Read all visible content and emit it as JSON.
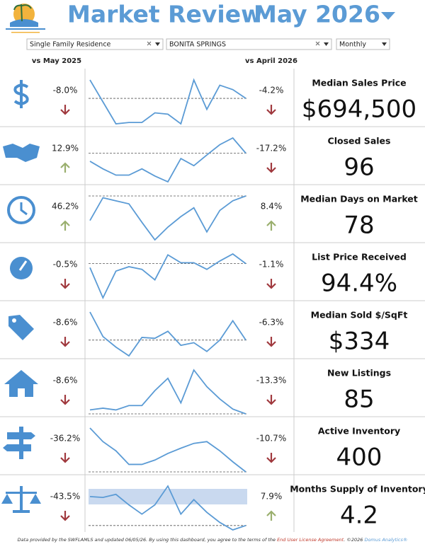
{
  "header": {
    "title": "Market Review",
    "period": "May 2026"
  },
  "filters": [
    "Single Family Residence",
    "BONITA SPRINGS",
    "Monthly"
  ],
  "columns": {
    "yoy": "vs May 2025",
    "mom": "vs April 2026"
  },
  "metrics": [
    {
      "name": "Median Sales Price",
      "value": "$694,500",
      "yoy": "-8.0%",
      "mom": "-4.2%",
      "trend": [
        100,
        50,
        0,
        3,
        3,
        25,
        22,
        0,
        100,
        33,
        88,
        78,
        58
      ]
    },
    {
      "name": "Closed Sales",
      "value": "96",
      "yoy": "12.9%",
      "mom": "-17.2%",
      "trend": [
        48,
        31,
        17,
        17,
        31,
        15,
        2,
        54,
        38,
        62,
        85,
        100,
        66
      ]
    },
    {
      "name": "Median Days on Market",
      "value": "78",
      "yoy": "46.2%",
      "mom": "8.4%",
      "trend": [
        44,
        96,
        89,
        82,
        40,
        0,
        29,
        53,
        73,
        18,
        67,
        89,
        100
      ]
    },
    {
      "name": "List Price Received",
      "value": "94.4%",
      "yoy": "-0.5%",
      "mom": "-1.1%",
      "trend": [
        69,
        0,
        61,
        71,
        65,
        41,
        98,
        80,
        80,
        65,
        84,
        100,
        78
      ]
    },
    {
      "name": "Median Sold $/SqFt",
      "value": "$334",
      "yoy": "-8.6%",
      "mom": "-6.3%",
      "trend": [
        100,
        44,
        20,
        0,
        42,
        40,
        56,
        24,
        30,
        10,
        36,
        80,
        36
      ]
    },
    {
      "name": "New Listings",
      "value": "85",
      "yoy": "-8.6%",
      "mom": "-13.3%",
      "trend": [
        9,
        13,
        9,
        19,
        19,
        53,
        81,
        25,
        100,
        62,
        34,
        11,
        0
      ]
    },
    {
      "name": "Active Inventory",
      "value": "400",
      "yoy": "-36.2%",
      "mom": "-10.7%",
      "trend": [
        100,
        69,
        48,
        17,
        17,
        27,
        42,
        54,
        65,
        69,
        48,
        23,
        0
      ]
    },
    {
      "name": "Months Supply of Inventory",
      "value": "4.2",
      "yoy": "-43.5%",
      "mom": "7.9%",
      "trend": [
        76,
        74,
        81,
        57,
        36,
        57,
        100,
        36,
        69,
        40,
        17,
        0,
        10
      ]
    }
  ],
  "footer": [
    "Data provided by the SWFLAMLS and updated 06/05/26.  By using this dashboard, you agree to the terms of the ",
    "End User License Agreement",
    ".  ©2026 ",
    "Domus Analytics®"
  ]
}
